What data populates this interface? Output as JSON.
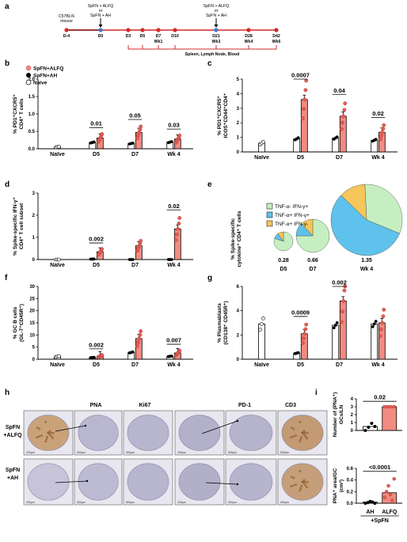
{
  "panels": {
    "a": "a",
    "b": "b",
    "c": "c",
    "d": "d",
    "e": "e",
    "f": "f",
    "g": "g",
    "h": "h",
    "i": "i"
  },
  "timeline": {
    "mouse_line1": "C57BL/6",
    "mouse_line2": "mouse",
    "immunization_line1": "SpFN + ALFQ",
    "immunization_line2": "or",
    "immunization_line3": "SpFN + AH",
    "points": [
      "D-4",
      "D0",
      "D3",
      "D5",
      "D7",
      "D10",
      "D21",
      "D28",
      "D42"
    ],
    "weeks": {
      "D7": "Wk1",
      "D21": "Wk3",
      "D28": "Wk4",
      "D42": "Wk6"
    },
    "sampling": "Spleen, Lymph Node, Blood"
  },
  "legend_groups": {
    "alfq": "SpFN+ALFQ",
    "ah": "SpFN+AH",
    "naive": "Naive"
  },
  "colors": {
    "alfq_fill": "#f28b82",
    "alfq_point": "#e35d52",
    "ah": "#000000",
    "naive": "#ffffff",
    "timeline_red": "#d62828",
    "timeline_blue": "#3a7bd5",
    "pie_green": "#c6efc1",
    "pie_blue": "#5ec2ec",
    "pie_yellow": "#f6c65b"
  },
  "categories": [
    "Naïve",
    "D5",
    "D7",
    "Wk 4"
  ],
  "chart_data": [
    {
      "panel": "b",
      "type": "bar",
      "ylabel_line1": "% PD1⁺CXCR5⁺",
      "ylabel_line2": "CD4⁺ T cells",
      "ylim": [
        0,
        2
      ],
      "yticks": [
        "0.0",
        "0.5",
        "1.0",
        "1.5",
        "2.0"
      ],
      "naive": 0.05,
      "series": [
        {
          "name": "SpFN+AH",
          "values": [
            0.18,
            0.15,
            0.19
          ]
        },
        {
          "name": "SpFN+ALFQ",
          "values": [
            0.31,
            0.47,
            0.28
          ]
        }
      ],
      "pvalues": [
        "0.01",
        "0.05",
        "0.03"
      ]
    },
    {
      "panel": "c",
      "type": "bar",
      "ylabel_line1": "% PD1⁺CXCR5⁺",
      "ylabel_line2": "ICOS⁺CD44⁺CD4⁺",
      "ylim": [
        0,
        5
      ],
      "yticks": [
        "0",
        "1",
        "2",
        "3",
        "4",
        "5"
      ],
      "naive": 0.6,
      "series": [
        {
          "name": "SpFN+AH",
          "values": [
            0.9,
            0.95,
            0.8
          ]
        },
        {
          "name": "SpFN+ALFQ",
          "values": [
            3.6,
            2.45,
            1.35
          ]
        }
      ],
      "pvalues": [
        "0.0007",
        "0.04",
        "0.02"
      ]
    },
    {
      "panel": "d",
      "type": "bar",
      "ylabel_line1": "% Spike-specific IFN-γ⁺",
      "ylabel_line2": "CD4⁺ T cell subset",
      "ylim": [
        0,
        3
      ],
      "yticks": [
        "0",
        "1",
        "2",
        "3"
      ],
      "naive": 0.0,
      "series": [
        {
          "name": "SpFN+AH",
          "values": [
            0.02,
            0.0,
            0.0
          ]
        },
        {
          "name": "SpFN+ALFQ",
          "values": [
            0.35,
            0.62,
            1.38
          ]
        }
      ],
      "pvalues": [
        "0.002",
        "",
        "0.02"
      ]
    },
    {
      "panel": "e",
      "type": "pie",
      "ylabel_line1": "% Spike-specific",
      "ylabel_line2": "cytokine⁺ CD4⁺ T cells",
      "legend": [
        "TNF-α- IFN-γ+",
        "TNF-α+ IFN-γ+",
        "TNF-α+ IFN-γ-"
      ],
      "pies": [
        {
          "value": "0.28",
          "label": "D5",
          "fractions": [
            0.8,
            0.1,
            0.1
          ]
        },
        {
          "value": "0.66",
          "label": "D7",
          "fractions": [
            0.75,
            0.13,
            0.12
          ]
        },
        {
          "value": "1.35",
          "label": "Wk 4",
          "fractions": [
            0.32,
            0.56,
            0.12
          ]
        }
      ]
    },
    {
      "panel": "f",
      "type": "bar",
      "ylabel_line1": "% GC B cells",
      "ylabel_line2": "(GL-7⁺CD45R⁺)",
      "ylim": [
        0,
        30
      ],
      "yticks": [
        "0",
        "5",
        "10",
        "15",
        "20",
        "25",
        "30"
      ],
      "naive": 1.1,
      "series": [
        {
          "name": "SpFN+AH",
          "values": [
            0.7,
            2.8,
            1.2
          ]
        },
        {
          "name": "SpFN+ALFQ",
          "values": [
            1.3,
            8.5,
            2.6
          ]
        }
      ],
      "pvalues": [
        "0.002",
        "",
        "0.007"
      ]
    },
    {
      "panel": "g",
      "type": "bar",
      "ylabel_line1": "% Plasmablasts",
      "ylabel_line2": "(CD138⁺ CD45R⁺)",
      "ylim": [
        0,
        6
      ],
      "yticks": [
        "0",
        "2",
        "4",
        "6"
      ],
      "naive": 2.9,
      "series": [
        {
          "name": "SpFN+AH",
          "values": [
            0.5,
            2.8,
            2.9
          ]
        },
        {
          "name": "SpFN+ALFQ",
          "values": [
            2.1,
            4.8,
            3.0
          ]
        }
      ],
      "pvalues": [
        "0.0009",
        "0.002",
        ""
      ]
    },
    {
      "panel": "i_top",
      "type": "bar",
      "ylabel_line1": "Number of (PNA⁺)",
      "ylabel_line2": "GCs/LN",
      "ylim": [
        0,
        4
      ],
      "yticks": [
        "0",
        "1",
        "2",
        "3",
        "4"
      ],
      "categories": [
        "AH",
        "ALFQ"
      ],
      "values": [
        0.5,
        3.0
      ],
      "pvalue": "0.02"
    },
    {
      "panel": "i_bottom",
      "type": "bar",
      "ylabel_line1": "PNA⁺ area/GC",
      "ylabel_line2": "(cm²)",
      "ylim": [
        0,
        0.6
      ],
      "yticks": [
        "0.0",
        "0.2",
        "0.4",
        "0.6"
      ],
      "categories": [
        "AH",
        "ALFQ"
      ],
      "values": [
        0.02,
        0.18
      ],
      "pvalue": "<0.0001",
      "xgroup": "+SpFN"
    }
  ],
  "histology": {
    "stains_left": [
      "PNA",
      "Ki67"
    ],
    "stains_right": [
      "PD-1",
      "CD3"
    ],
    "rows": [
      {
        "line1": "SpFN",
        "line2": "+ALFQ"
      },
      {
        "line1": "SpFN",
        "line2": "+AH"
      }
    ],
    "scale_200": "200μm",
    "scale_500": "500μm"
  }
}
